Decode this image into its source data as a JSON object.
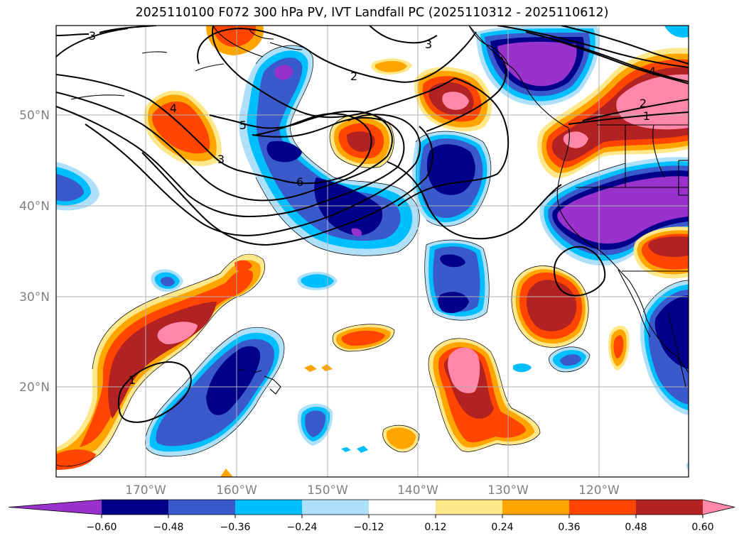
{
  "title": "2025110100 F072 300 hPa PV, IVT Landfall PC (2025110312 - 2025110612)",
  "map": {
    "lat_ticks": [
      "50°N",
      "40°N",
      "30°N",
      "20°N"
    ],
    "lon_ticks": [
      "170°W",
      "160°W",
      "150°W",
      "140°W",
      "130°W",
      "120°W"
    ],
    "gridlines": true
  },
  "contour_labels": [
    "3",
    "3",
    "2",
    "4",
    "5",
    "6",
    "3",
    "4",
    "2",
    "1",
    "1"
  ],
  "colorbar": {
    "ticks": [
      "−0.60",
      "−0.48",
      "−0.36",
      "−0.24",
      "−0.12",
      "0.12",
      "0.24",
      "0.36",
      "0.48",
      "0.60"
    ],
    "colors": [
      "#9932cc",
      "#00008b",
      "#3a5acc",
      "#00bfff",
      "#aee0fa",
      "#ffffff",
      "#ffe88a",
      "#ffa500",
      "#ff4500",
      "#b22222",
      "#ff88aa"
    ],
    "extend": "both"
  },
  "colors": {
    "purple": "#9932cc",
    "navy": "#00008b",
    "royal": "#3a5acc",
    "sky": "#00bfff",
    "pale_blue": "#aee0fa",
    "yellow": "#ffe88a",
    "orange": "#ffa500",
    "orange_red": "#ff4500",
    "firebrick": "#b22222",
    "pink": "#ff88aa"
  }
}
